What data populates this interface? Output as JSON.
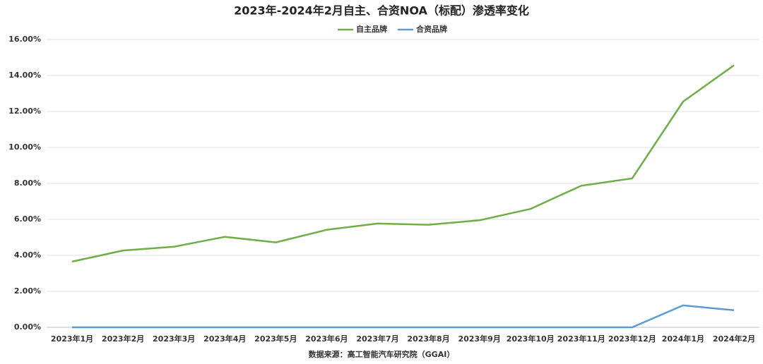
{
  "chart_data": {
    "type": "line",
    "title": "2023年-2024年2月自主、合资NOA（标配）渗透率变化",
    "source": "数据来源：高工智能汽车研究院（GGAI）",
    "categories": [
      "2023年1月",
      "2023年2月",
      "2023年3月",
      "2023年4月",
      "2023年5月",
      "2023年6月",
      "2023年7月",
      "2023年8月",
      "2023年9月",
      "2023年10月",
      "2023年11月",
      "2023年12月",
      "2024年1月",
      "2024年2月"
    ],
    "series": [
      {
        "name": "自主品牌",
        "color": "#70ad47",
        "values": [
          3.65,
          4.27,
          4.48,
          5.03,
          4.72,
          5.42,
          5.77,
          5.7,
          5.95,
          6.58,
          7.87,
          8.28,
          12.55,
          14.57
        ]
      },
      {
        "name": "合资品牌",
        "color": "#5b9bd5",
        "values": [
          0,
          0,
          0,
          0,
          0,
          0,
          0,
          0,
          0,
          0,
          0,
          0,
          1.22,
          0.95
        ]
      }
    ],
    "ylim": [
      0,
      16
    ],
    "yticks": [
      {
        "value": 0,
        "label": "0.00%"
      },
      {
        "value": 2,
        "label": "2.00%"
      },
      {
        "value": 4,
        "label": "4.00%"
      },
      {
        "value": 6,
        "label": "6.00%"
      },
      {
        "value": 8,
        "label": "8.00%"
      },
      {
        "value": 10,
        "label": "10.00%"
      },
      {
        "value": 12,
        "label": "12.00%"
      },
      {
        "value": 14,
        "label": "14.00%"
      },
      {
        "value": 16,
        "label": "16.00%"
      }
    ],
    "grid": true,
    "legend": "top"
  }
}
